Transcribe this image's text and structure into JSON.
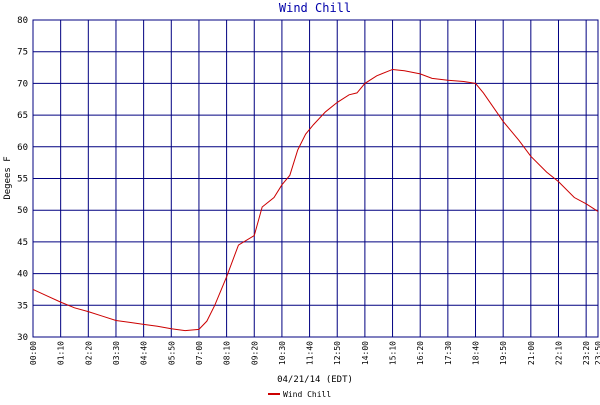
{
  "chart_data": {
    "type": "line",
    "title": "Wind Chill",
    "x_label": "04/21/14 (EDT)",
    "y_label": "Degees F",
    "x": [
      "00:00",
      "00:35",
      "01:10",
      "01:45",
      "02:20",
      "02:55",
      "03:30",
      "04:05",
      "04:40",
      "05:15",
      "05:50",
      "06:25",
      "07:00",
      "07:20",
      "07:40",
      "08:10",
      "08:40",
      "09:20",
      "09:40",
      "10:10",
      "10:30",
      "10:50",
      "11:10",
      "11:30",
      "11:50",
      "12:20",
      "12:50",
      "13:20",
      "13:40",
      "14:00",
      "14:30",
      "15:10",
      "15:40",
      "16:20",
      "16:50",
      "17:30",
      "18:10",
      "18:40",
      "19:00",
      "19:50",
      "20:30",
      "21:00",
      "21:40",
      "22:10",
      "22:50",
      "23:20",
      "23:50"
    ],
    "series": [
      {
        "name": "Wind Chill",
        "color": "#cc0000",
        "values": [
          37.5,
          36.5,
          35.5,
          34.6,
          34.0,
          33.3,
          32.6,
          32.3,
          32.0,
          31.7,
          31.3,
          31.0,
          31.2,
          32.5,
          35.0,
          39.5,
          44.5,
          46.0,
          50.5,
          52.0,
          54.0,
          55.5,
          59.5,
          62.0,
          63.5,
          65.5,
          67.0,
          68.2,
          68.5,
          70.0,
          71.2,
          72.2,
          72.0,
          71.5,
          70.8,
          70.5,
          70.3,
          70.0,
          68.5,
          64.0,
          61.0,
          58.5,
          56.0,
          54.5,
          52.0,
          51.0,
          49.8
        ]
      }
    ],
    "xlim": [
      "00:00",
      "23:50"
    ],
    "xticks": [
      "00:00",
      "01:10",
      "02:20",
      "03:30",
      "04:40",
      "05:50",
      "07:00",
      "08:10",
      "09:20",
      "10:30",
      "11:40",
      "12:50",
      "14:00",
      "15:10",
      "16:20",
      "17:30",
      "18:40",
      "19:50",
      "21:00",
      "22:10",
      "23:20",
      "23:50"
    ],
    "ylim": [
      30,
      80
    ],
    "yticks": [
      30,
      35,
      40,
      45,
      50,
      55,
      60,
      65,
      70,
      75,
      80
    ],
    "grid": true,
    "grid_color": "#000080",
    "title_color": "#0000aa"
  }
}
